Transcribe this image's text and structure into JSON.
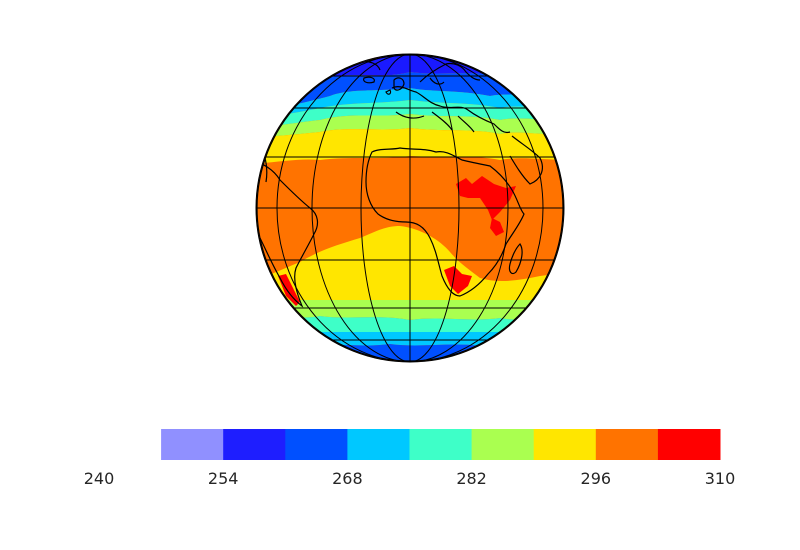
{
  "map": {
    "projection": "orthographic",
    "variable_colors": {
      "band_north_polar": "#1a1aff",
      "band_subpolar": "#0050ff",
      "band_cool": "#00c8ff",
      "band_mild": "#3effc8",
      "band_temperate": "#aaff50",
      "band_warm": "#ffe600",
      "band_hot": "#ff7300",
      "band_hottest": "#ff0000"
    },
    "coastline_color": "#000000",
    "graticule_color": "#000000"
  },
  "colorbar": {
    "ticks": [
      "240",
      "254",
      "268",
      "282",
      "296",
      "310"
    ],
    "range": [
      240,
      310
    ],
    "bins": [
      {
        "from": 247,
        "to": 254,
        "color": "#9090ff"
      },
      {
        "from": 254,
        "to": 261,
        "color": "#1e1eff"
      },
      {
        "from": 261,
        "to": 268,
        "color": "#0050ff"
      },
      {
        "from": 268,
        "to": 275,
        "color": "#00c8ff"
      },
      {
        "from": 275,
        "to": 282,
        "color": "#3effc8"
      },
      {
        "from": 282,
        "to": 289,
        "color": "#aaff50"
      },
      {
        "from": 289,
        "to": 296,
        "color": "#ffe600"
      },
      {
        "from": 296,
        "to": 303,
        "color": "#ff7300"
      },
      {
        "from": 303,
        "to": 310,
        "color": "#ff0000"
      }
    ]
  }
}
